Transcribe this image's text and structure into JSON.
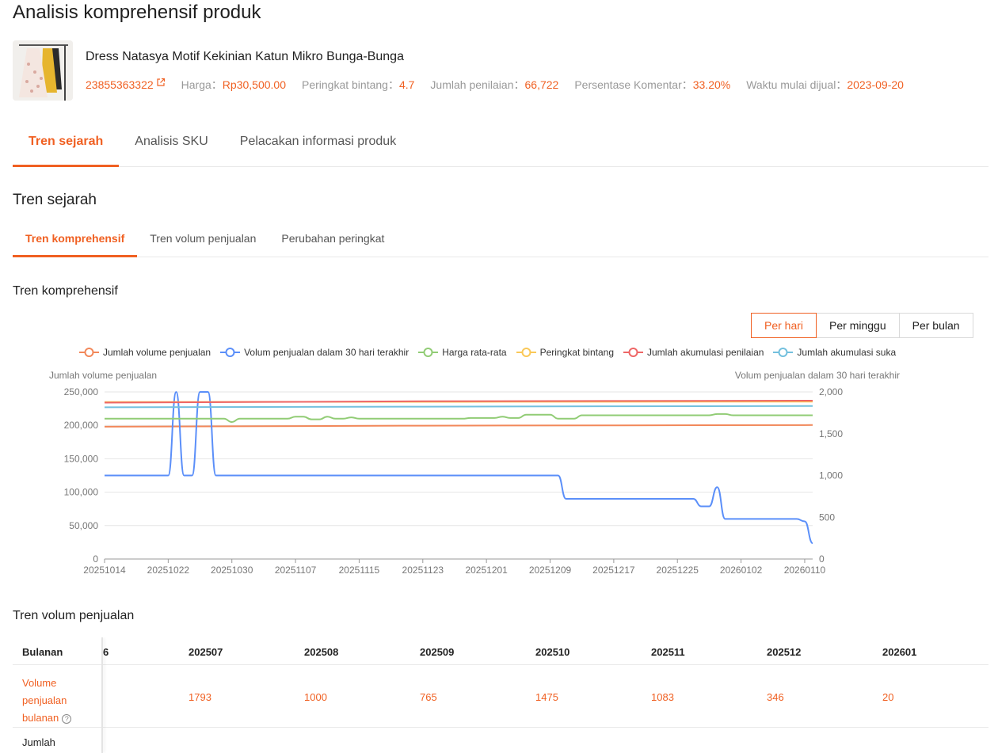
{
  "page_title": "Analisis komprehensif produk",
  "product": {
    "name": "Dress Natasya Motif Kekinian Katun Mikro Bunga-Bunga",
    "id": "23855363322",
    "price_label": "Harga：",
    "price": "Rp30,500.00",
    "rating_label": "Peringkat bintang：",
    "rating": "4.7",
    "reviews_label": "Jumlah penilaian：",
    "reviews": "66,722",
    "comment_pct_label": "Persentase Komentar：",
    "comment_pct": "33.20%",
    "start_label": "Waktu mulai dijual：",
    "start_date": "2023-09-20"
  },
  "main_tabs": [
    {
      "label": "Tren sejarah"
    },
    {
      "label": "Analisis SKU"
    },
    {
      "label": "Pelacakan informasi produk"
    }
  ],
  "section_title": "Tren sejarah",
  "sub_tabs": [
    {
      "label": "Tren komprehensif"
    },
    {
      "label": "Tren volum penjualan"
    },
    {
      "label": "Perubahan peringkat"
    }
  ],
  "chart_section_title": "Tren komprehensif",
  "period_buttons": [
    {
      "label": "Per hari"
    },
    {
      "label": "Per minggu"
    },
    {
      "label": "Per bulan"
    }
  ],
  "colors": {
    "accent": "#f06022",
    "s1": "#f2885a",
    "s2": "#5b8ff9",
    "s3": "#91cc75",
    "s4": "#fac858",
    "s5": "#ee6666",
    "s6": "#73c0de"
  },
  "chart_data": {
    "type": "line",
    "legend": [
      "Jumlah volume penjualan",
      "Volum penjualan dalam 30 hari terakhir",
      "Harga rata-rata",
      "Peringkat bintang",
      "Jumlah akumulasi penilaian",
      "Jumlah akumulasi suka"
    ],
    "legend_position": "top",
    "y_left_label": "Jumlah volume penjualan",
    "y_right_label": "Volum penjualan dalam 30 hari terakhir",
    "y_left_ticks": [
      "0",
      "50,000",
      "100,000",
      "150,000",
      "200,000",
      "250,000"
    ],
    "y_right_ticks": [
      "0",
      "500",
      "1,000",
      "1,500",
      "2,000"
    ],
    "ylim_left": [
      0,
      250000
    ],
    "ylim_right": [
      0,
      2000
    ],
    "x_ticks": [
      "20251014",
      "20251022",
      "20251030",
      "20251107",
      "20251115",
      "20251123",
      "20251201",
      "20251209",
      "20251217",
      "20251225",
      "20260102",
      "20260110"
    ],
    "grid": true,
    "x_start": "2025-10-14",
    "x_end": "2026-01-11",
    "series": [
      {
        "name": "Jumlah volume penjualan",
        "axis": "left",
        "points": [
          [
            "2025-10-14",
            198000
          ],
          [
            "2025-11-23",
            199500
          ],
          [
            "2026-01-11",
            200500
          ]
        ]
      },
      {
        "name": "Volum penjualan dalam 30 hari terakhir",
        "axis": "right",
        "points": [
          [
            "2025-10-14",
            1000
          ],
          [
            "2025-10-22",
            1000
          ],
          [
            "2025-10-23",
            2000
          ],
          [
            "2025-10-24",
            1000
          ],
          [
            "2025-10-25",
            1000
          ],
          [
            "2025-10-26",
            2000
          ],
          [
            "2025-10-27",
            2000
          ],
          [
            "2025-10-28",
            1000
          ],
          [
            "2025-12-10",
            1000
          ],
          [
            "2025-12-11",
            720
          ],
          [
            "2025-12-27",
            720
          ],
          [
            "2025-12-28",
            630
          ],
          [
            "2025-12-29",
            630
          ],
          [
            "2025-12-30",
            860
          ],
          [
            "2025-12-31",
            480
          ],
          [
            "2026-01-09",
            480
          ],
          [
            "2026-01-10",
            450
          ],
          [
            "2026-01-11",
            190
          ]
        ]
      },
      {
        "name": "Harga rata-rata",
        "axis": "left",
        "points": [
          [
            "2025-10-14",
            210000
          ],
          [
            "2025-10-29",
            210000
          ],
          [
            "2025-10-30",
            205000
          ],
          [
            "2025-10-31",
            210000
          ],
          [
            "2025-11-06",
            210000
          ],
          [
            "2025-11-07",
            213000
          ],
          [
            "2025-11-08",
            213000
          ],
          [
            "2025-11-09",
            209000
          ],
          [
            "2025-11-10",
            209000
          ],
          [
            "2025-11-11",
            213000
          ],
          [
            "2025-11-12",
            210000
          ],
          [
            "2025-11-13",
            210000
          ],
          [
            "2025-11-14",
            212000
          ],
          [
            "2025-11-15",
            210000
          ],
          [
            "2025-11-28",
            210000
          ],
          [
            "2025-11-29",
            211000
          ],
          [
            "2025-12-02",
            211000
          ],
          [
            "2025-12-03",
            213000
          ],
          [
            "2025-12-04",
            211000
          ],
          [
            "2025-12-05",
            211000
          ],
          [
            "2025-12-06",
            216000
          ],
          [
            "2025-12-09",
            216000
          ],
          [
            "2025-12-10",
            210000
          ],
          [
            "2025-12-12",
            210000
          ],
          [
            "2025-12-13",
            215000
          ],
          [
            "2025-12-29",
            215000
          ],
          [
            "2025-12-30",
            217000
          ],
          [
            "2025-12-31",
            217000
          ],
          [
            "2026-01-01",
            215000
          ],
          [
            "2026-01-11",
            215000
          ]
        ]
      },
      {
        "name": "Peringkat bintang",
        "axis": "left",
        "points": [
          [
            "2025-10-14",
            235000
          ],
          [
            "2026-01-11",
            235500
          ]
        ]
      },
      {
        "name": "Jumlah akumulasi penilaian",
        "axis": "left",
        "points": [
          [
            "2025-10-14",
            234000
          ],
          [
            "2025-11-23",
            236000
          ],
          [
            "2026-01-11",
            237000
          ]
        ]
      },
      {
        "name": "Jumlah akumulasi suka",
        "axis": "left",
        "points": [
          [
            "2025-10-14",
            227000
          ],
          [
            "2025-11-23",
            228000
          ],
          [
            "2026-01-11",
            229000
          ]
        ]
      }
    ]
  },
  "sales_section_title": "Tren volum penjualan",
  "sales_table": {
    "header_label": "Bulanan",
    "partial_month": "6",
    "months": [
      "202507",
      "202508",
      "202509",
      "202510",
      "202511",
      "202512",
      "202601"
    ],
    "row1_label": "Volume penjualan bulanan",
    "row1_values": [
      "1793",
      "1000",
      "765",
      "1475",
      "1083",
      "346",
      "20"
    ],
    "row1_help": "?",
    "row2_label": "Jumlah"
  }
}
